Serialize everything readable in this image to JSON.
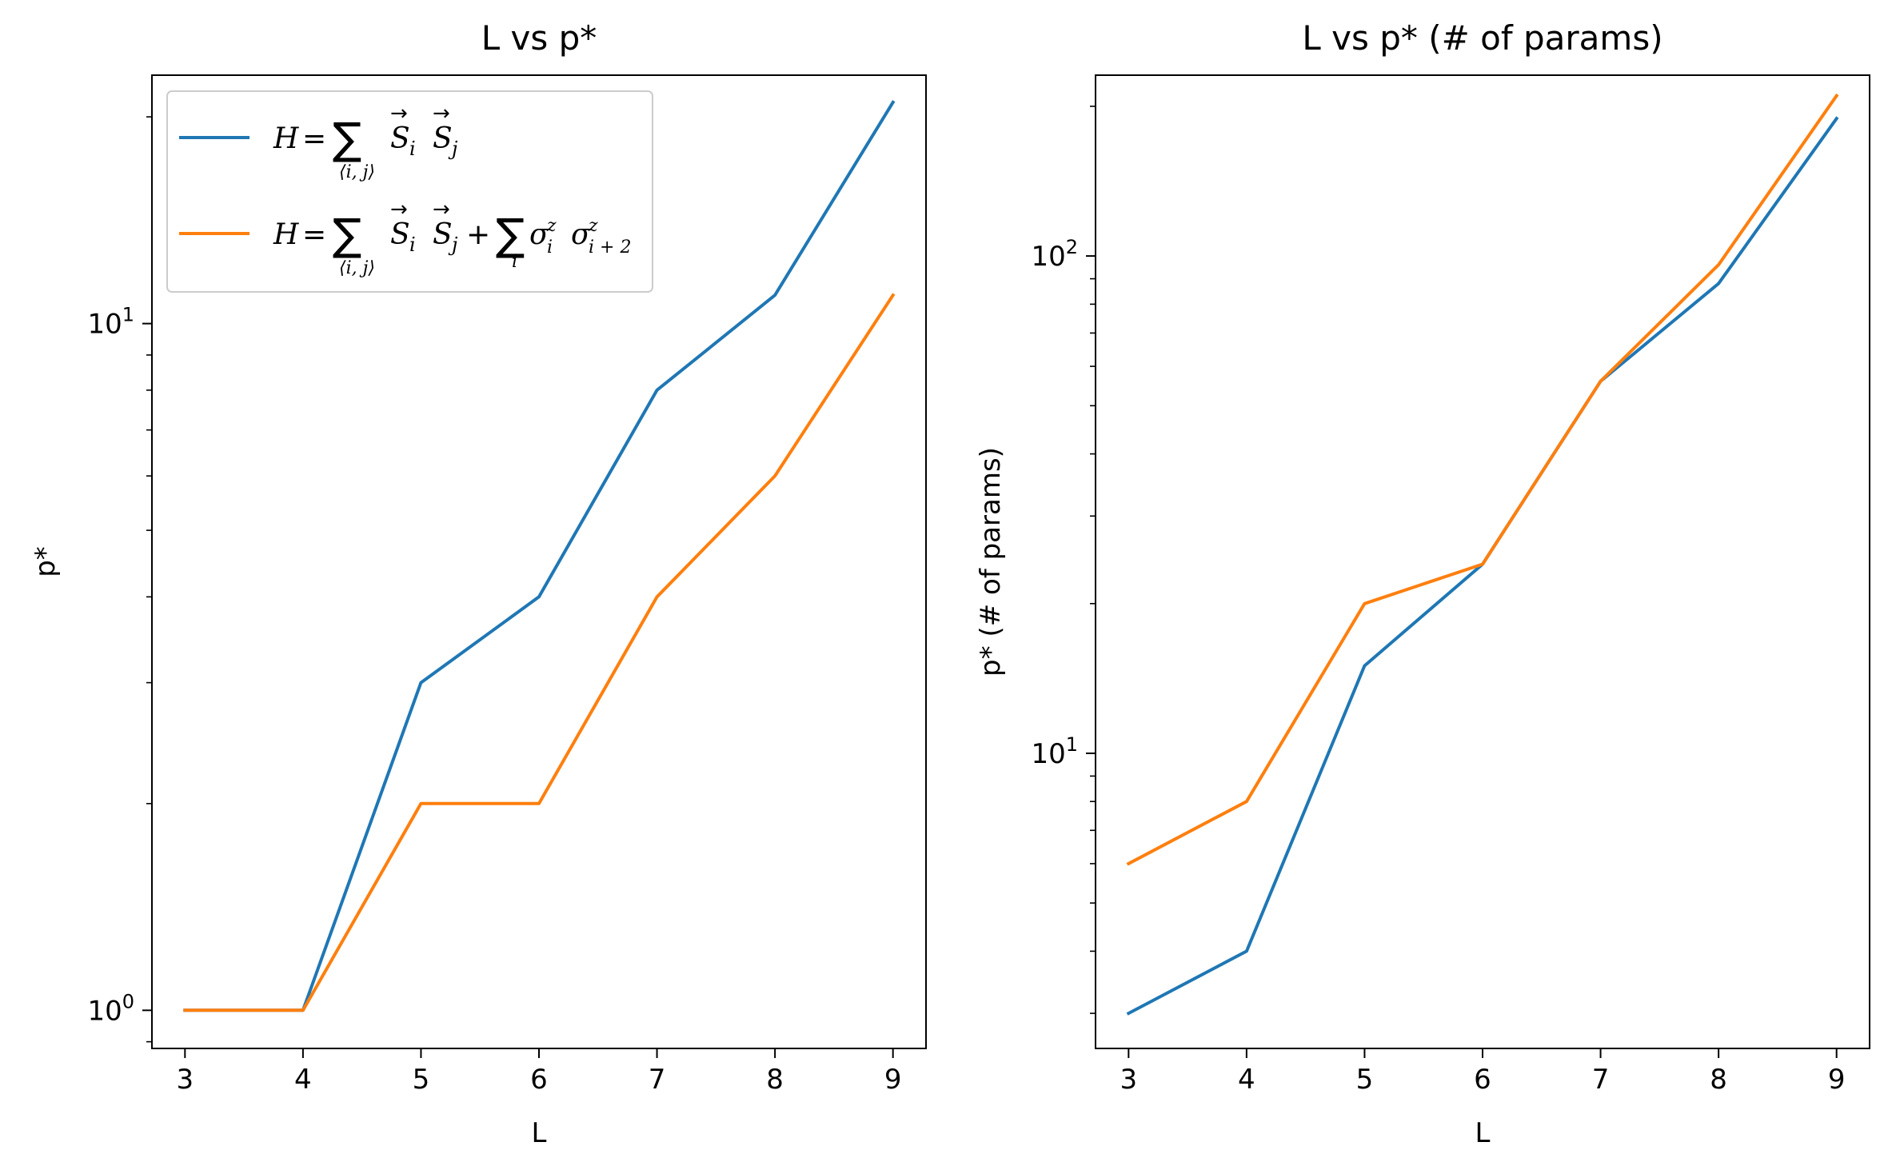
{
  "chart_data": [
    {
      "type": "line",
      "title": "L vs p*",
      "xlabel": "L",
      "ylabel": "p*",
      "yscale": "log",
      "xlim": [
        2.72,
        9.28
      ],
      "ylim": [
        0.88,
        23.0
      ],
      "x": [
        3,
        4,
        5,
        6,
        7,
        8,
        9
      ],
      "xticks": [
        "3",
        "4",
        "5",
        "6",
        "7",
        "8",
        "9"
      ],
      "yticks": [
        {
          "value": 1,
          "base": "10",
          "exp": "0"
        },
        {
          "value": 10,
          "base": "10",
          "exp": "1"
        }
      ],
      "legend_position": "upper-left",
      "series": [
        {
          "name": "H = Σ⟨i,j⟩ S⃗i S⃗j",
          "color": "#1f77b4",
          "values": [
            1,
            1,
            3,
            4,
            8,
            11,
            21
          ]
        },
        {
          "name": "H = Σ⟨i,j⟩ S⃗i S⃗j + Σi σzi σzi+2",
          "color": "#ff7f0e",
          "values": [
            1,
            1,
            2,
            2,
            4,
            6,
            11
          ]
        }
      ]
    },
    {
      "type": "line",
      "title": "L vs p* (# of params)",
      "xlabel": "L",
      "ylabel": "p* (# of params)",
      "yscale": "log",
      "xlim": [
        2.72,
        9.28
      ],
      "ylim": [
        2.55,
        231.0
      ],
      "x": [
        3,
        4,
        5,
        6,
        7,
        8,
        9
      ],
      "xticks": [
        "3",
        "4",
        "5",
        "6",
        "7",
        "8",
        "9"
      ],
      "yticks": [
        {
          "value": 10,
          "base": "10",
          "exp": "1"
        },
        {
          "value": 100,
          "base": "10",
          "exp": "2"
        }
      ],
      "series": [
        {
          "name": "",
          "color": "#1f77b4",
          "values": [
            3,
            4,
            15,
            24,
            56,
            88,
            189
          ]
        },
        {
          "name": "",
          "color": "#ff7f0e",
          "values": [
            6,
            8,
            20,
            24,
            56,
            96,
            210
          ]
        }
      ]
    }
  ]
}
